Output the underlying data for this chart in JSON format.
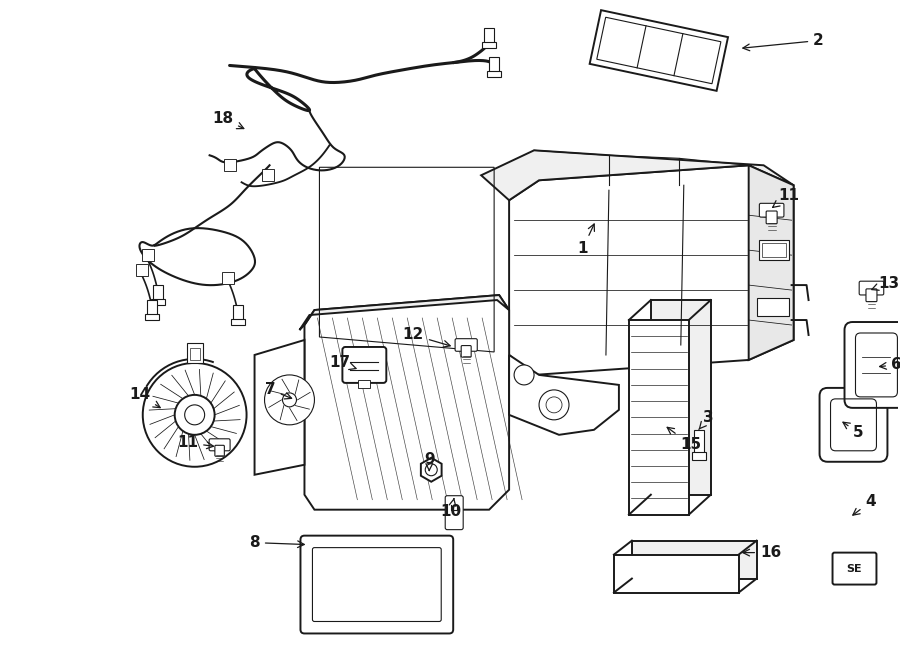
{
  "background_color": "#ffffff",
  "line_color": "#1a1a1a",
  "figsize": [
    9.0,
    6.62
  ],
  "dpi": 100,
  "lw_main": 1.4,
  "lw_thin": 0.8,
  "lw_thick": 2.0,
  "label_fontsize": 11,
  "label_positions": {
    "1": [
      0.595,
      0.605,
      0.575,
      0.635
    ],
    "2": [
      0.836,
      0.94,
      0.77,
      0.928
    ],
    "3": [
      0.73,
      0.415,
      0.714,
      0.434
    ],
    "4": [
      0.892,
      0.297,
      0.87,
      0.283
    ],
    "5": [
      0.888,
      0.368,
      0.869,
      0.378
    ],
    "6": [
      0.92,
      0.455,
      0.9,
      0.455
    ],
    "7": [
      0.29,
      0.385,
      0.318,
      0.398
    ],
    "8": [
      0.272,
      0.175,
      0.305,
      0.188
    ],
    "9": [
      0.445,
      0.178,
      0.444,
      0.2
    ],
    "10": [
      0.468,
      0.12,
      0.457,
      0.142
    ],
    "11a": [
      0.808,
      0.752,
      0.787,
      0.746
    ],
    "11b": [
      0.193,
      0.328,
      0.213,
      0.342
    ],
    "12": [
      0.432,
      0.556,
      0.453,
      0.547
    ],
    "13": [
      0.91,
      0.628,
      0.887,
      0.625
    ],
    "14": [
      0.15,
      0.455,
      0.175,
      0.455
    ],
    "15": [
      0.705,
      0.27,
      0.678,
      0.3
    ],
    "16": [
      0.793,
      0.143,
      0.745,
      0.142
    ],
    "17": [
      0.352,
      0.472,
      0.363,
      0.468
    ],
    "18": [
      0.233,
      0.835,
      0.255,
      0.82
    ]
  }
}
